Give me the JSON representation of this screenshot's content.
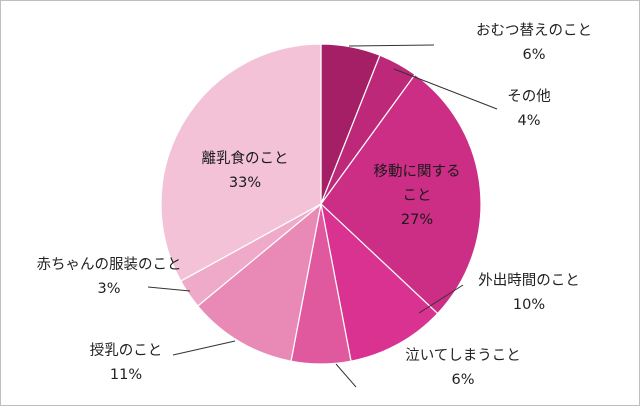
{
  "chart_data": {
    "type": "pie",
    "start_angle_deg": 0,
    "direction": "clockwise",
    "slices": [
      {
        "label": "おむつ替えのこと",
        "value": 6,
        "value_label": "6%",
        "color": "#a51f66"
      },
      {
        "label": "その他",
        "value": 4,
        "value_label": "4%",
        "color": "#bd2878"
      },
      {
        "label": "移動に関すること",
        "label_lines": [
          "移動に関する",
          "こと"
        ],
        "value": 27,
        "value_label": "27%",
        "color": "#cc2d85"
      },
      {
        "label": "外出時間のこと",
        "value": 10,
        "value_label": "10%",
        "color": "#d93291"
      },
      {
        "label": "泣いてしまうこと",
        "value": 6,
        "value_label": "6%",
        "color": "#e0599f"
      },
      {
        "label": "授乳のこと",
        "value": 11,
        "value_label": "11%",
        "color": "#e889b6"
      },
      {
        "label": "赤ちゃんの服装のこと",
        "value": 3,
        "value_label": "3%",
        "color": "#eeaac8"
      },
      {
        "label": "離乳食のこと",
        "value": 33,
        "value_label": "33%",
        "color": "#f3c2d7"
      }
    ]
  }
}
